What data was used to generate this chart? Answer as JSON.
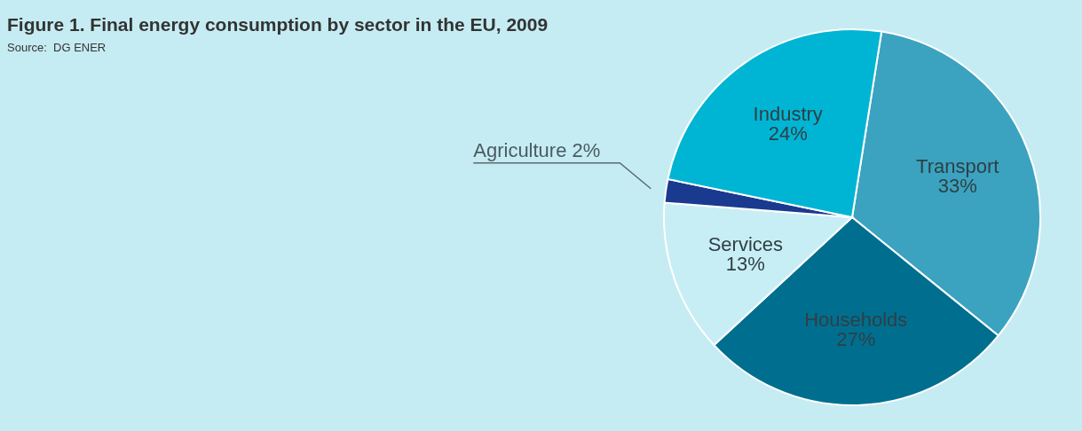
{
  "chart_data": {
    "type": "pie",
    "title": "Figure 1. Final energy consumption by sector in the EU, 2009",
    "subtitle": "Source:  DG ENER",
    "categories": [
      "Transport",
      "Households",
      "Services",
      "Agriculture",
      "Industry"
    ],
    "values": [
      33,
      27,
      13,
      2,
      24
    ],
    "value_labels": [
      "33%",
      "27%",
      "13%",
      "2%",
      "24%"
    ],
    "colors": [
      "#3ba3bf",
      "#006f8f",
      "#c8eef5",
      "#1a3a8f",
      "#00b5d4"
    ]
  }
}
